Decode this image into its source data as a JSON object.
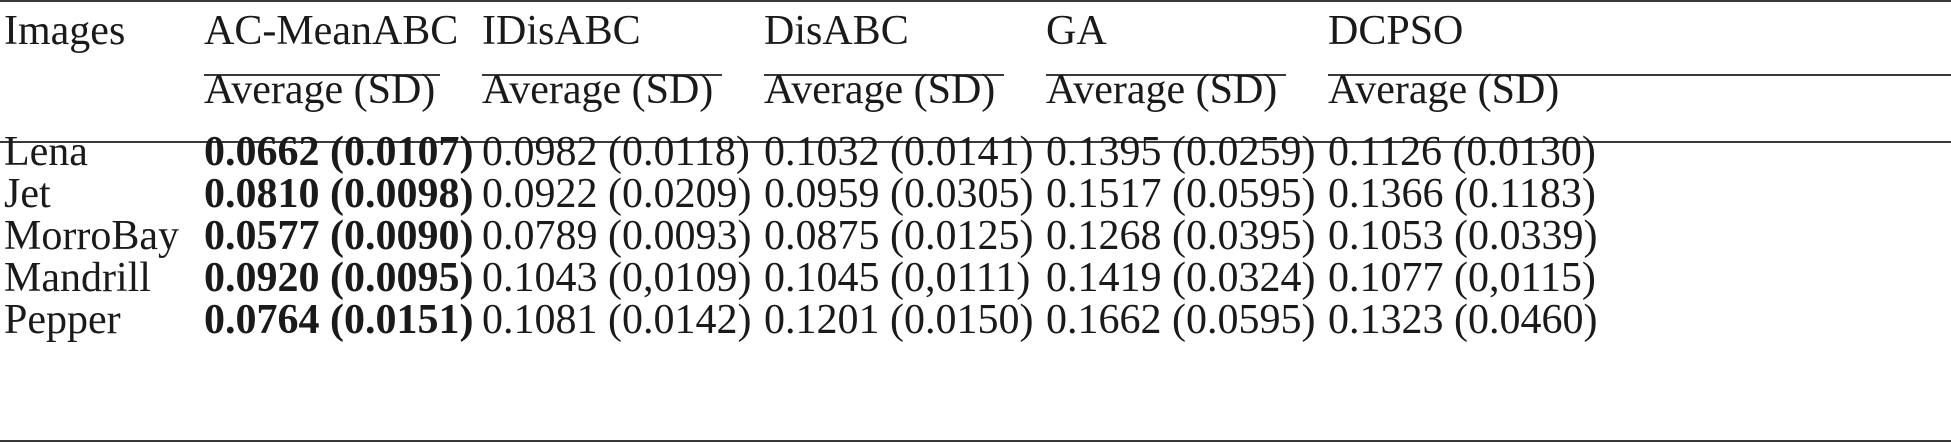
{
  "table": {
    "header": {
      "row_label": "Images",
      "methods": [
        "AC-MeanABC",
        "IDisABC",
        "DisABC",
        "GA",
        "DCPSO"
      ],
      "sub_label": "Average (SD)"
    },
    "rows": [
      {
        "image": "Lena",
        "values": [
          "0.0662 (0.0107)",
          "0.0982 (0.0118)",
          "0.1032 (0.0141)",
          "0.1395 (0.0259)",
          "0.1126 (0.0130)"
        ]
      },
      {
        "image": "Jet",
        "values": [
          "0.0810 (0.0098)",
          "0.0922 (0.0209)",
          "0.0959 (0.0305)",
          "0.1517 (0.0595)",
          "0.1366 (0.1183)"
        ]
      },
      {
        "image": "MorroBay",
        "values": [
          "0.0577 (0.0090)",
          "0.0789 (0.0093)",
          "0.0875 (0.0125)",
          "0.1268 (0.0395)",
          "0.1053 (0.0339)"
        ]
      },
      {
        "image": "Mandrill",
        "values": [
          "0.0920 (0.0095)",
          "0.1043 (0,0109)",
          "0.1045 (0,0111)",
          "0.1419 (0.0324)",
          "0.1077 (0,0115)"
        ]
      },
      {
        "image": "Pepper",
        "values": [
          "0.0764 (0.0151)",
          "0.1081 (0.0142)",
          "0.1201 (0.0150)",
          "0.1662 (0.0595)",
          "0.1323 (0.0460)"
        ]
      }
    ]
  }
}
